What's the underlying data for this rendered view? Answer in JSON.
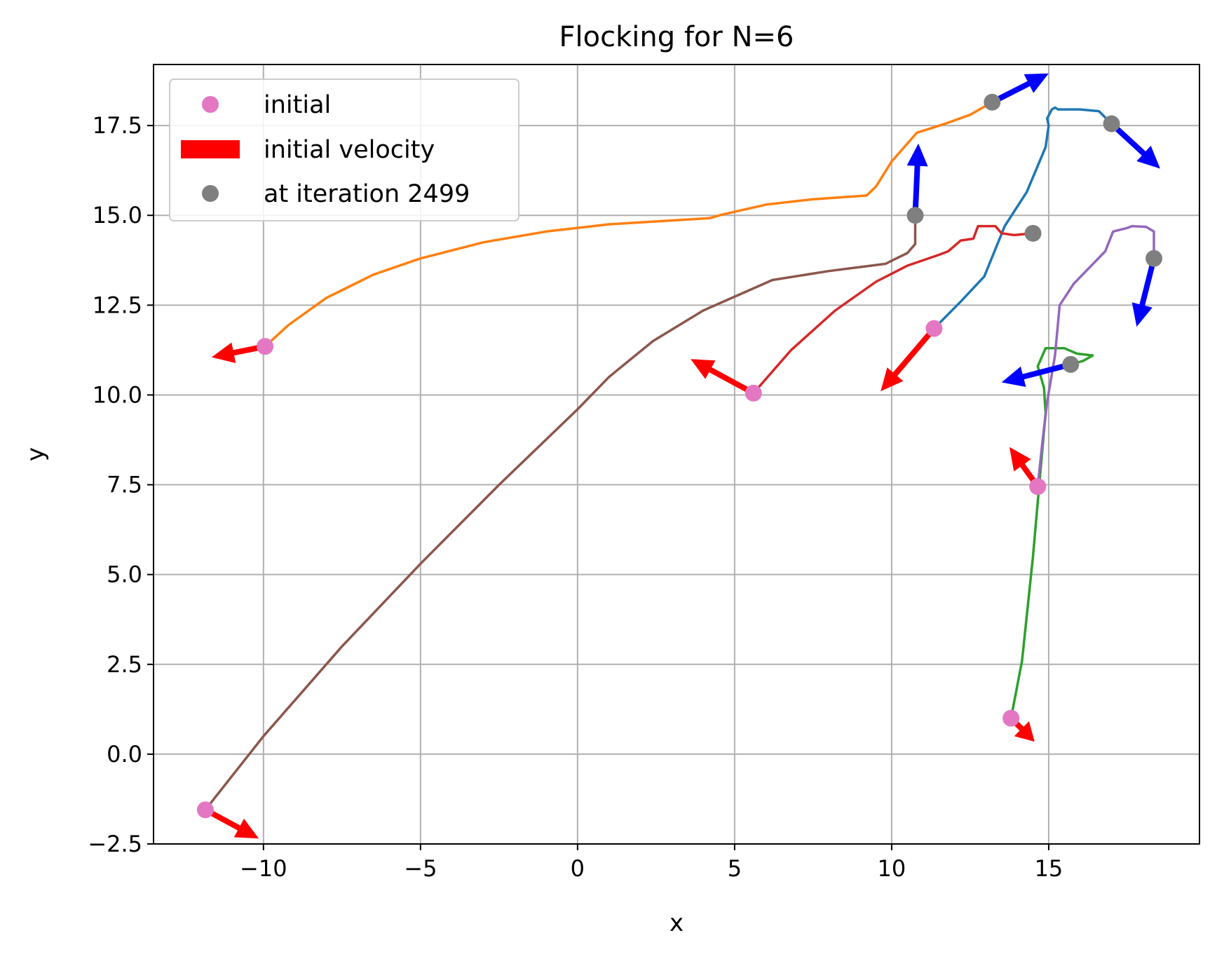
{
  "chart_data": {
    "type": "line",
    "title": "Flocking for N=6",
    "xlabel": "x",
    "ylabel": "y",
    "xlim": [
      -13.5,
      19.8
    ],
    "ylim": [
      -2.5,
      19.2
    ],
    "xticks": [
      -10,
      -5,
      0,
      5,
      10,
      15
    ],
    "xtick_labels": [
      "−10",
      "−5",
      "0",
      "5",
      "10",
      "15"
    ],
    "yticks": [
      -2.5,
      0.0,
      2.5,
      5.0,
      7.5,
      10.0,
      12.5,
      15.0,
      17.5
    ],
    "ytick_labels": [
      "−2.5",
      "0.0",
      "2.5",
      "5.0",
      "7.5",
      "10.0",
      "12.5",
      "15.0",
      "17.5"
    ],
    "grid": true,
    "legend": {
      "placement": "top-left",
      "entries": [
        {
          "label": "initial",
          "marker": "circle",
          "color": "#e377c2"
        },
        {
          "label": "initial velocity",
          "marker": "rect",
          "color": "#ff0000"
        },
        {
          "label": "at iteration 2499",
          "marker": "circle",
          "color": "#7f7f7f"
        }
      ]
    },
    "colors": {
      "initial_marker": "#e377c2",
      "final_marker": "#7f7f7f",
      "initial_velocity": "#ff0000",
      "final_velocity": "#0000ff"
    },
    "series": [
      {
        "color": "#1f77b4",
        "points": [
          [
            11.35,
            11.85
          ],
          [
            12.2,
            12.6
          ],
          [
            12.95,
            13.3
          ],
          [
            13.6,
            14.7
          ],
          [
            14.3,
            15.65
          ],
          [
            14.9,
            16.9
          ],
          [
            15.0,
            17.5
          ],
          [
            14.95,
            17.7
          ],
          [
            15.1,
            17.95
          ],
          [
            15.2,
            18.0
          ],
          [
            15.3,
            17.95
          ],
          [
            16.0,
            17.95
          ],
          [
            16.6,
            17.9
          ],
          [
            17.0,
            17.55
          ]
        ],
        "initial": [
          11.35,
          11.85
        ],
        "initial_velocity": [
          -1.7,
          -1.75
        ],
        "final": [
          17.0,
          17.55
        ],
        "final_velocity": [
          1.55,
          -1.25
        ]
      },
      {
        "color": "#ff7f0e",
        "points": [
          [
            -9.95,
            11.35
          ],
          [
            -9.2,
            11.95
          ],
          [
            -8.0,
            12.7
          ],
          [
            -6.5,
            13.35
          ],
          [
            -5.0,
            13.8
          ],
          [
            -3.0,
            14.25
          ],
          [
            -1.0,
            14.55
          ],
          [
            1.0,
            14.75
          ],
          [
            4.2,
            14.92
          ],
          [
            4.6,
            15.02
          ],
          [
            6.0,
            15.3
          ],
          [
            7.5,
            15.45
          ],
          [
            9.2,
            15.55
          ],
          [
            9.5,
            15.8
          ],
          [
            10.0,
            16.5
          ],
          [
            10.8,
            17.3
          ],
          [
            11.7,
            17.55
          ],
          [
            12.5,
            17.8
          ],
          [
            13.2,
            18.15
          ]
        ],
        "initial": [
          -9.95,
          11.35
        ],
        "initial_velocity": [
          -1.7,
          -0.3
        ],
        "final": [
          13.2,
          18.15
        ],
        "final_velocity": [
          1.8,
          0.8
        ]
      },
      {
        "color": "#2ca02c",
        "points": [
          [
            13.8,
            1.0
          ],
          [
            14.15,
            2.6
          ],
          [
            14.5,
            5.5
          ],
          [
            14.75,
            8.0
          ],
          [
            14.9,
            9.5
          ],
          [
            14.85,
            10.2
          ],
          [
            14.65,
            10.8
          ],
          [
            14.9,
            11.3
          ],
          [
            15.5,
            11.3
          ],
          [
            15.9,
            11.15
          ],
          [
            16.4,
            11.1
          ],
          [
            16.1,
            10.95
          ],
          [
            15.7,
            10.85
          ]
        ],
        "initial": [
          13.8,
          1.0
        ],
        "initial_velocity": [
          0.75,
          -0.65
        ],
        "final": [
          15.7,
          10.85
        ],
        "final_velocity": [
          -2.2,
          -0.5
        ]
      },
      {
        "color": "#d62728",
        "points": [
          [
            5.6,
            10.05
          ],
          [
            6.8,
            11.25
          ],
          [
            8.2,
            12.35
          ],
          [
            9.5,
            13.15
          ],
          [
            10.5,
            13.6
          ],
          [
            11.5,
            13.9
          ],
          [
            11.8,
            14.0
          ],
          [
            12.2,
            14.3
          ],
          [
            12.6,
            14.35
          ],
          [
            12.75,
            14.7
          ],
          [
            13.3,
            14.7
          ],
          [
            13.5,
            14.5
          ],
          [
            13.9,
            14.45
          ],
          [
            14.5,
            14.5
          ]
        ],
        "initial": [
          5.6,
          10.05
        ],
        "initial_velocity": [
          -2.0,
          0.95
        ],
        "final": [
          14.5,
          14.5
        ],
        "final_velocity": null
      },
      {
        "color": "#9467bd",
        "points": [
          [
            14.65,
            7.45
          ],
          [
            14.8,
            8.7
          ],
          [
            14.95,
            9.8
          ],
          [
            15.2,
            11.1
          ],
          [
            15.35,
            12.5
          ],
          [
            15.8,
            13.1
          ],
          [
            16.8,
            14.0
          ],
          [
            17.05,
            14.55
          ],
          [
            17.5,
            14.65
          ],
          [
            17.65,
            14.7
          ],
          [
            18.1,
            14.68
          ],
          [
            18.35,
            14.55
          ],
          [
            18.35,
            14.2
          ],
          [
            18.35,
            13.8
          ]
        ],
        "initial": [
          14.65,
          7.45
        ],
        "initial_velocity": [
          -0.9,
          1.1
        ],
        "final": [
          18.35,
          13.8
        ],
        "final_velocity": [
          -0.55,
          -1.9
        ]
      },
      {
        "color": "#8c564b",
        "points": [
          [
            -11.85,
            -1.55
          ],
          [
            -10.0,
            0.5
          ],
          [
            -7.5,
            3.0
          ],
          [
            -5.0,
            5.3
          ],
          [
            -2.5,
            7.5
          ],
          [
            0.0,
            9.6
          ],
          [
            1.0,
            10.5
          ],
          [
            2.4,
            11.5
          ],
          [
            4.0,
            12.35
          ],
          [
            6.2,
            13.2
          ],
          [
            8.0,
            13.45
          ],
          [
            9.8,
            13.65
          ],
          [
            10.5,
            13.95
          ],
          [
            10.75,
            14.2
          ],
          [
            10.75,
            14.7
          ],
          [
            10.75,
            15.0
          ]
        ],
        "initial": [
          -11.85,
          -1.55
        ],
        "initial_velocity": [
          1.7,
          -0.8
        ],
        "final": [
          10.75,
          15.0
        ],
        "final_velocity": [
          0.1,
          2.0
        ]
      }
    ]
  }
}
